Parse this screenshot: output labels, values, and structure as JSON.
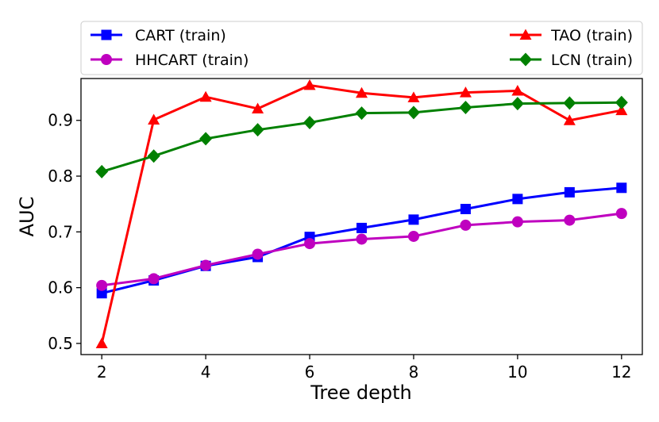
{
  "chart_data": {
    "type": "line",
    "title": "",
    "xlabel": "Tree depth",
    "ylabel": "AUC",
    "x": [
      2,
      3,
      4,
      5,
      6,
      7,
      8,
      9,
      10,
      11,
      12
    ],
    "xlim": [
      1.6,
      12.4
    ],
    "ylim": [
      0.48,
      0.975
    ],
    "xticks": [
      2,
      4,
      6,
      8,
      10,
      12
    ],
    "yticks": [
      0.5,
      0.6,
      0.7,
      0.8,
      0.9
    ],
    "xtick_labels": [
      "2",
      "4",
      "6",
      "8",
      "10",
      "12"
    ],
    "ytick_labels": [
      "0.5",
      "0.6",
      "0.7",
      "0.8",
      "0.9"
    ],
    "grid": false,
    "legend_position": "top, outside plot, two columns",
    "series": [
      {
        "name": "CART (train)",
        "color": "#0000ff",
        "marker": "square",
        "values": [
          0.59,
          0.613,
          0.639,
          0.655,
          0.691,
          0.707,
          0.722,
          0.741,
          0.759,
          0.771,
          0.779
        ]
      },
      {
        "name": "HHCART (train)",
        "color": "#bf00bf",
        "marker": "circle",
        "values": [
          0.604,
          0.616,
          0.64,
          0.66,
          0.679,
          0.687,
          0.692,
          0.712,
          0.718,
          0.721,
          0.733
        ]
      },
      {
        "name": "TAO (train)",
        "color": "#ff0000",
        "marker": "triangle",
        "values": [
          0.5,
          0.901,
          0.942,
          0.921,
          0.963,
          0.949,
          0.941,
          0.95,
          0.953,
          0.9,
          0.918
        ]
      },
      {
        "name": "LCN (train)",
        "color": "#008000",
        "marker": "diamond",
        "values": [
          0.808,
          0.836,
          0.867,
          0.883,
          0.896,
          0.913,
          0.914,
          0.923,
          0.93,
          0.931,
          0.932
        ]
      }
    ],
    "legend_order": [
      0,
      2,
      1,
      3
    ]
  }
}
